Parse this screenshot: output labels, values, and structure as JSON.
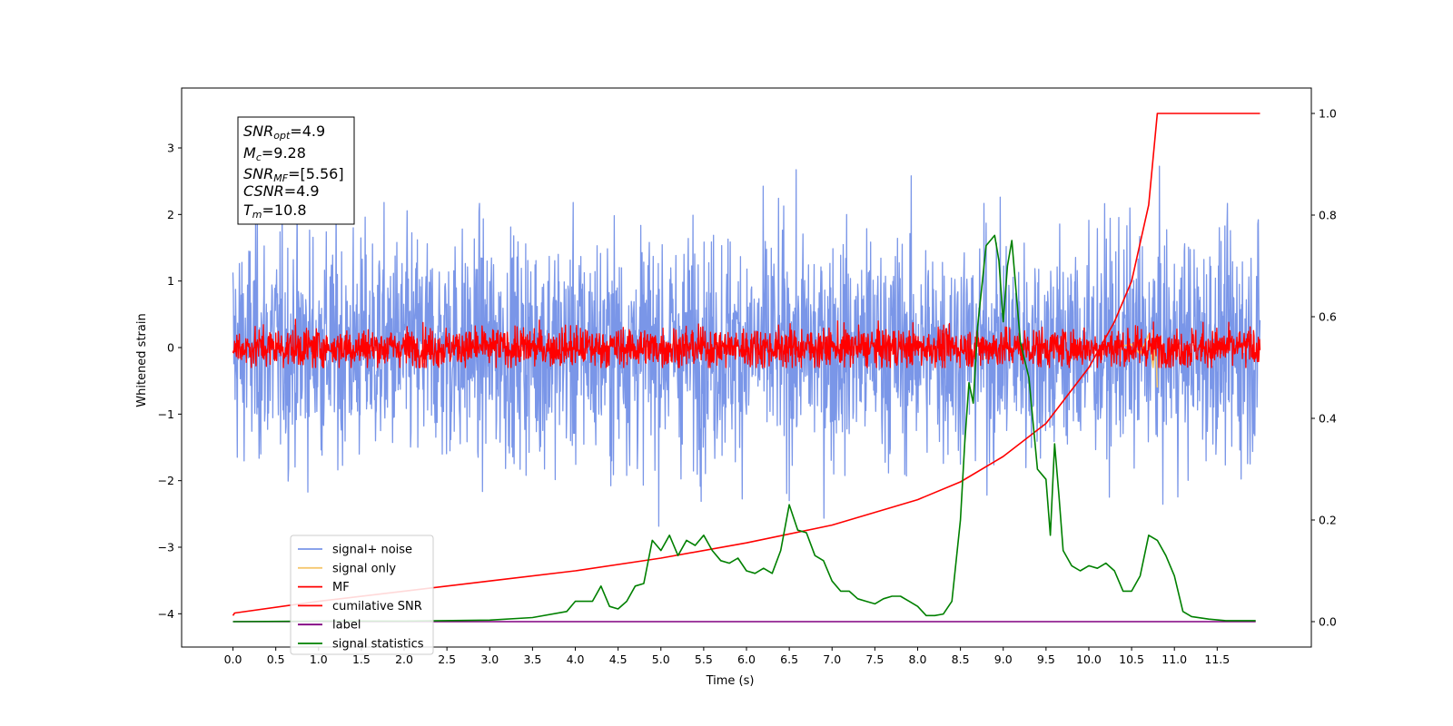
{
  "chart_data": {
    "type": "line",
    "title": "",
    "xlabel": "Time (s)",
    "ylabel_left": "Whitened strain",
    "ylabel_right": "",
    "xlim": [
      -0.6,
      12.6
    ],
    "ylim_left": [
      -4.5,
      3.9
    ],
    "ylim_right": [
      -0.05,
      1.05
    ],
    "x_ticks": [
      "0.0",
      "0.5",
      "1.0",
      "1.5",
      "2.0",
      "2.5",
      "3.0",
      "3.5",
      "4.0",
      "4.5",
      "5.0",
      "5.5",
      "6.0",
      "6.5",
      "7.0",
      "7.5",
      "8.0",
      "8.5",
      "9.0",
      "9.5",
      "10.0",
      "10.5",
      "11.0",
      "11.5"
    ],
    "y_ticks_left": [
      "−4",
      "−3",
      "−2",
      "−1",
      "0",
      "1",
      "2",
      "3"
    ],
    "y_ticks_right": [
      "0.0",
      "0.2",
      "0.4",
      "0.6",
      "0.8",
      "1.0"
    ],
    "grid": false,
    "legend_position": "lower-left",
    "info_box": {
      "line1": {
        "var": "SNR",
        "sub": "opt",
        "val": "=4.9"
      },
      "line2": {
        "var": "M",
        "sub": "c",
        "val": "=9.28"
      },
      "line3": {
        "var": "SNR",
        "sub": "MF",
        "val": "=[5.56]"
      },
      "line4": {
        "var": "CSNR",
        "sub": "",
        "val": "=4.9"
      },
      "line5": {
        "var": "T",
        "sub": "m",
        "val": "=10.8"
      }
    },
    "series": [
      {
        "name": "signal+ noise",
        "color": "#7a96e8",
        "axis": "left",
        "kind": "noise",
        "amplitude_std": 0.85,
        "duration": 12.0
      },
      {
        "name": "signal only",
        "color": "#f5c76e",
        "axis": "left",
        "kind": "chirp",
        "x": [
          10.3,
          10.5,
          10.6,
          10.7,
          10.75,
          10.78,
          10.8
        ],
        "y": [
          0.0,
          0.05,
          -0.1,
          0.2,
          -0.3,
          0.1,
          -0.6
        ]
      },
      {
        "name": "MF",
        "color": "#ff0000",
        "axis": "left",
        "kind": "noise",
        "amplitude_std": 0.15,
        "duration": 12.0
      },
      {
        "name": "cumilative SNR",
        "color": "#ff0000",
        "axis": "right",
        "x": [
          0.0,
          0.02,
          1.0,
          2.0,
          3.0,
          4.0,
          5.0,
          6.0,
          7.0,
          8.0,
          8.5,
          9.0,
          9.5,
          10.0,
          10.3,
          10.5,
          10.7,
          10.8,
          12.0
        ],
        "y": [
          0.012,
          0.017,
          0.04,
          0.06,
          0.08,
          0.1,
          0.125,
          0.155,
          0.19,
          0.24,
          0.275,
          0.325,
          0.39,
          0.5,
          0.59,
          0.67,
          0.82,
          1.0,
          1.0
        ]
      },
      {
        "name": "label",
        "color": "#800080",
        "axis": "right",
        "x": [
          0.0,
          11.95
        ],
        "y": [
          0.0,
          0.0
        ]
      },
      {
        "name": "signal statistics",
        "color": "#008000",
        "axis": "right",
        "x": [
          0.0,
          1.0,
          2.0,
          3.0,
          3.5,
          3.9,
          4.0,
          4.2,
          4.3,
          4.4,
          4.5,
          4.6,
          4.7,
          4.8,
          4.9,
          5.0,
          5.1,
          5.2,
          5.3,
          5.4,
          5.5,
          5.6,
          5.7,
          5.8,
          5.9,
          6.0,
          6.1,
          6.2,
          6.3,
          6.4,
          6.5,
          6.6,
          6.7,
          6.8,
          6.9,
          7.0,
          7.1,
          7.2,
          7.3,
          7.4,
          7.5,
          7.6,
          7.7,
          7.8,
          7.9,
          8.0,
          8.1,
          8.2,
          8.3,
          8.4,
          8.5,
          8.55,
          8.6,
          8.65,
          8.7,
          8.8,
          8.9,
          8.95,
          9.0,
          9.05,
          9.1,
          9.15,
          9.2,
          9.3,
          9.4,
          9.5,
          9.55,
          9.6,
          9.65,
          9.7,
          9.8,
          9.9,
          10.0,
          10.1,
          10.2,
          10.3,
          10.4,
          10.5,
          10.6,
          10.7,
          10.8,
          10.9,
          11.0,
          11.1,
          11.2,
          11.4,
          11.6,
          11.95
        ],
        "y": [
          0.0,
          0.001,
          0.001,
          0.003,
          0.008,
          0.02,
          0.04,
          0.04,
          0.07,
          0.03,
          0.025,
          0.04,
          0.07,
          0.075,
          0.16,
          0.14,
          0.17,
          0.13,
          0.16,
          0.15,
          0.17,
          0.14,
          0.12,
          0.115,
          0.125,
          0.1,
          0.095,
          0.105,
          0.095,
          0.14,
          0.23,
          0.18,
          0.175,
          0.13,
          0.12,
          0.08,
          0.06,
          0.06,
          0.045,
          0.04,
          0.035,
          0.045,
          0.05,
          0.05,
          0.04,
          0.03,
          0.012,
          0.012,
          0.015,
          0.04,
          0.2,
          0.35,
          0.47,
          0.43,
          0.58,
          0.74,
          0.76,
          0.71,
          0.59,
          0.7,
          0.75,
          0.65,
          0.55,
          0.48,
          0.3,
          0.28,
          0.17,
          0.35,
          0.25,
          0.14,
          0.11,
          0.1,
          0.11,
          0.105,
          0.115,
          0.1,
          0.06,
          0.06,
          0.09,
          0.17,
          0.16,
          0.13,
          0.09,
          0.02,
          0.01,
          0.005,
          0.002,
          0.002
        ]
      }
    ]
  }
}
